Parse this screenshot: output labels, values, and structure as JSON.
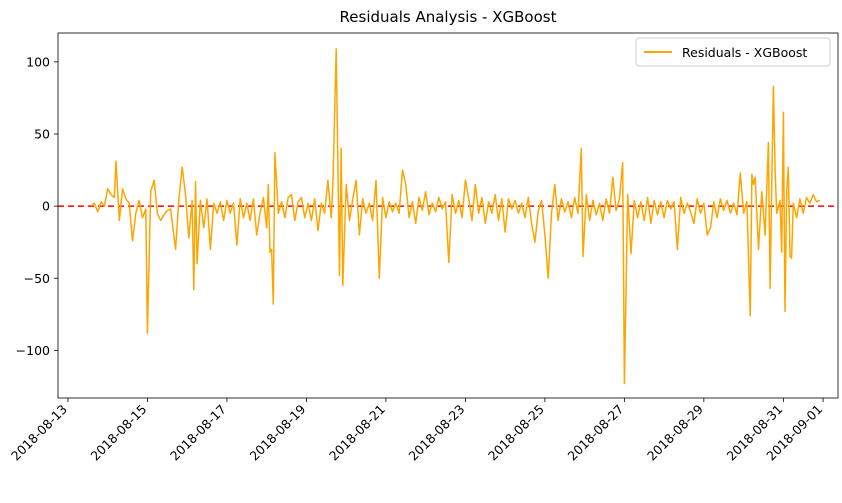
{
  "chart_data": {
    "type": "line",
    "title": "Residuals Analysis - XGBoost",
    "xlabel": "",
    "ylabel": "",
    "x_ticks": [
      "2018-08-13",
      "2018-08-15",
      "2018-08-17",
      "2018-08-19",
      "2018-08-21",
      "2018-08-23",
      "2018-08-25",
      "2018-08-27",
      "2018-08-29",
      "2018-08-31",
      "2018-09-01"
    ],
    "y_ticks": [
      100,
      50,
      0,
      -50,
      -100
    ],
    "y_tick_labels": [
      "100",
      "50",
      "0",
      "−50",
      "−100"
    ],
    "xlim": [
      "2018-08-12T18:00",
      "2018-09-01T09:00"
    ],
    "ylim": [
      -133,
      120
    ],
    "legend_position": "top-right",
    "reference_line": {
      "y": 0,
      "color": "#ff0000",
      "style": "dashed"
    },
    "series": [
      {
        "name": "Residuals - XGBoost",
        "color": "#ffa500",
        "points": [
          [
            "2018-08-13T14:00",
            0
          ],
          [
            "2018-08-13T16:00",
            2
          ],
          [
            "2018-08-13T18:00",
            -4
          ],
          [
            "2018-08-13T20:00",
            3
          ],
          [
            "2018-08-13T22:00",
            0
          ],
          [
            "2018-08-14T00:00",
            12
          ],
          [
            "2018-08-14T02:00",
            8
          ],
          [
            "2018-08-14T04:00",
            6
          ],
          [
            "2018-08-14T05:00",
            31
          ],
          [
            "2018-08-14T07:00",
            -10
          ],
          [
            "2018-08-14T09:00",
            12
          ],
          [
            "2018-08-14T11:00",
            5
          ],
          [
            "2018-08-14T13:00",
            2
          ],
          [
            "2018-08-14T15:00",
            -24
          ],
          [
            "2018-08-14T17:00",
            -5
          ],
          [
            "2018-08-14T19:00",
            4
          ],
          [
            "2018-08-14T21:00",
            -8
          ],
          [
            "2018-08-14T23:00",
            -2
          ],
          [
            "2018-08-15T00:00",
            -88
          ],
          [
            "2018-08-15T02:00",
            10
          ],
          [
            "2018-08-15T04:00",
            18
          ],
          [
            "2018-08-15T06:00",
            -5
          ],
          [
            "2018-08-15T08:00",
            -10
          ],
          [
            "2018-08-15T10:00",
            -6
          ],
          [
            "2018-08-15T12:00",
            -3
          ],
          [
            "2018-08-15T14:00",
            -2
          ],
          [
            "2018-08-15T17:00",
            -30
          ],
          [
            "2018-08-15T19:00",
            5
          ],
          [
            "2018-08-15T21:00",
            27
          ],
          [
            "2018-08-15T23:00",
            8
          ],
          [
            "2018-08-16T01:00",
            -22
          ],
          [
            "2018-08-16T03:00",
            4
          ],
          [
            "2018-08-16T04:00",
            -58
          ],
          [
            "2018-08-16T05:00",
            17
          ],
          [
            "2018-08-16T06:00",
            -40
          ],
          [
            "2018-08-16T08:00",
            4
          ],
          [
            "2018-08-16T10:00",
            -15
          ],
          [
            "2018-08-16T12:00",
            5
          ],
          [
            "2018-08-16T14:00",
            -30
          ],
          [
            "2018-08-16T16:00",
            2
          ],
          [
            "2018-08-16T18:00",
            -5
          ],
          [
            "2018-08-16T20:00",
            3
          ],
          [
            "2018-08-16T22:00",
            -10
          ],
          [
            "2018-08-17T00:00",
            4
          ],
          [
            "2018-08-17T02:00",
            -5
          ],
          [
            "2018-08-17T04:00",
            2
          ],
          [
            "2018-08-17T06:00",
            -27
          ],
          [
            "2018-08-17T08:00",
            5
          ],
          [
            "2018-08-17T10:00",
            -8
          ],
          [
            "2018-08-17T12:00",
            2
          ],
          [
            "2018-08-17T14:00",
            -10
          ],
          [
            "2018-08-17T16:00",
            5
          ],
          [
            "2018-08-17T18:00",
            -20
          ],
          [
            "2018-08-17T20:00",
            -5
          ],
          [
            "2018-08-17T22:00",
            6
          ],
          [
            "2018-08-18T00:00",
            -15
          ],
          [
            "2018-08-18T01:00",
            15
          ],
          [
            "2018-08-18T02:00",
            -32
          ],
          [
            "2018-08-18T03:00",
            -30
          ],
          [
            "2018-08-18T04:00",
            -68
          ],
          [
            "2018-08-18T05:00",
            37
          ],
          [
            "2018-08-18T07:00",
            -5
          ],
          [
            "2018-08-18T09:00",
            3
          ],
          [
            "2018-08-18T11:00",
            -8
          ],
          [
            "2018-08-18T13:00",
            6
          ],
          [
            "2018-08-18T15:00",
            8
          ],
          [
            "2018-08-18T17:00",
            -10
          ],
          [
            "2018-08-18T19:00",
            3
          ],
          [
            "2018-08-18T21:00",
            6
          ],
          [
            "2018-08-18T23:00",
            -8
          ],
          [
            "2018-08-19T01:00",
            2
          ],
          [
            "2018-08-19T03:00",
            -10
          ],
          [
            "2018-08-19T05:00",
            5
          ],
          [
            "2018-08-19T07:00",
            -17
          ],
          [
            "2018-08-19T09:00",
            2
          ],
          [
            "2018-08-19T11:00",
            -5
          ],
          [
            "2018-08-19T13:00",
            18
          ],
          [
            "2018-08-19T15:00",
            -8
          ],
          [
            "2018-08-19T16:00",
            15
          ],
          [
            "2018-08-19T18:00",
            109
          ],
          [
            "2018-08-19T20:00",
            -48
          ],
          [
            "2018-08-19T21:00",
            40
          ],
          [
            "2018-08-19T22:00",
            -55
          ],
          [
            "2018-08-20T00:00",
            15
          ],
          [
            "2018-08-20T02:00",
            -10
          ],
          [
            "2018-08-20T04:00",
            5
          ],
          [
            "2018-08-20T06:00",
            18
          ],
          [
            "2018-08-20T08:00",
            -20
          ],
          [
            "2018-08-20T10:00",
            5
          ],
          [
            "2018-08-20T12:00",
            -5
          ],
          [
            "2018-08-20T14:00",
            2
          ],
          [
            "2018-08-20T16:00",
            -10
          ],
          [
            "2018-08-20T18:00",
            18
          ],
          [
            "2018-08-20T20:00",
            -50
          ],
          [
            "2018-08-20T22:00",
            6
          ],
          [
            "2018-08-21T00:00",
            -8
          ],
          [
            "2018-08-21T02:00",
            3
          ],
          [
            "2018-08-21T04:00",
            -4
          ],
          [
            "2018-08-21T06:00",
            2
          ],
          [
            "2018-08-21T08:00",
            -5
          ],
          [
            "2018-08-21T10:00",
            25
          ],
          [
            "2018-08-21T12:00",
            15
          ],
          [
            "2018-08-21T14:00",
            -8
          ],
          [
            "2018-08-21T16:00",
            3
          ],
          [
            "2018-08-21T18:00",
            -12
          ],
          [
            "2018-08-21T20:00",
            6
          ],
          [
            "2018-08-21T22:00",
            -3
          ],
          [
            "2018-08-22T00:00",
            10
          ],
          [
            "2018-08-22T02:00",
            -6
          ],
          [
            "2018-08-22T04:00",
            2
          ],
          [
            "2018-08-22T06:00",
            -4
          ],
          [
            "2018-08-22T08:00",
            6
          ],
          [
            "2018-08-22T10:00",
            -2
          ],
          [
            "2018-08-22T12:00",
            3
          ],
          [
            "2018-08-22T14:00",
            -39
          ],
          [
            "2018-08-22T16:00",
            8
          ],
          [
            "2018-08-22T18:00",
            -5
          ],
          [
            "2018-08-22T20:00",
            4
          ],
          [
            "2018-08-22T22:00",
            -8
          ],
          [
            "2018-08-23T00:00",
            18
          ],
          [
            "2018-08-23T02:00",
            5
          ],
          [
            "2018-08-23T04:00",
            -10
          ],
          [
            "2018-08-23T06:00",
            15
          ],
          [
            "2018-08-23T08:00",
            -5
          ],
          [
            "2018-08-23T10:00",
            6
          ],
          [
            "2018-08-23T12:00",
            -12
          ],
          [
            "2018-08-23T14:00",
            3
          ],
          [
            "2018-08-23T16:00",
            -5
          ],
          [
            "2018-08-23T18:00",
            8
          ],
          [
            "2018-08-23T20:00",
            -10
          ],
          [
            "2018-08-23T22:00",
            5
          ],
          [
            "2018-08-24T00:00",
            -18
          ],
          [
            "2018-08-24T02:00",
            5
          ],
          [
            "2018-08-24T04:00",
            -2
          ],
          [
            "2018-08-24T06:00",
            4
          ],
          [
            "2018-08-24T08:00",
            -5
          ],
          [
            "2018-08-24T10:00",
            2
          ],
          [
            "2018-08-24T12:00",
            -8
          ],
          [
            "2018-08-24T14:00",
            6
          ],
          [
            "2018-08-24T16:00",
            -12
          ],
          [
            "2018-08-24T18:00",
            -25
          ],
          [
            "2018-08-24T20:00",
            -3
          ],
          [
            "2018-08-24T22:00",
            4
          ],
          [
            "2018-08-25T00:00",
            -20
          ],
          [
            "2018-08-25T02:00",
            -50
          ],
          [
            "2018-08-25T04:00",
            -5
          ],
          [
            "2018-08-25T06:00",
            15
          ],
          [
            "2018-08-25T08:00",
            -10
          ],
          [
            "2018-08-25T10:00",
            5
          ],
          [
            "2018-08-25T12:00",
            -4
          ],
          [
            "2018-08-25T14:00",
            3
          ],
          [
            "2018-08-25T16:00",
            -8
          ],
          [
            "2018-08-25T18:00",
            6
          ],
          [
            "2018-08-25T20:00",
            -5
          ],
          [
            "2018-08-25T22:00",
            40
          ],
          [
            "2018-08-25T23:00",
            -35
          ],
          [
            "2018-08-26T01:00",
            8
          ],
          [
            "2018-08-26T03:00",
            -10
          ],
          [
            "2018-08-26T05:00",
            4
          ],
          [
            "2018-08-26T07:00",
            -6
          ],
          [
            "2018-08-26T09:00",
            2
          ],
          [
            "2018-08-26T11:00",
            -10
          ],
          [
            "2018-08-26T13:00",
            5
          ],
          [
            "2018-08-26T15:00",
            -5
          ],
          [
            "2018-08-26T17:00",
            20
          ],
          [
            "2018-08-26T19:00",
            -3
          ],
          [
            "2018-08-26T21:00",
            5
          ],
          [
            "2018-08-26T23:00",
            30
          ],
          [
            "2018-08-27T00:00",
            -123
          ],
          [
            "2018-08-27T02:00",
            8
          ],
          [
            "2018-08-27T04:00",
            -33
          ],
          [
            "2018-08-27T06:00",
            4
          ],
          [
            "2018-08-27T08:00",
            -8
          ],
          [
            "2018-08-27T10:00",
            3
          ],
          [
            "2018-08-27T12:00",
            -10
          ],
          [
            "2018-08-27T14:00",
            6
          ],
          [
            "2018-08-27T16:00",
            -12
          ],
          [
            "2018-08-27T18:00",
            4
          ],
          [
            "2018-08-27T20:00",
            -6
          ],
          [
            "2018-08-27T22:00",
            3
          ],
          [
            "2018-08-28T00:00",
            -8
          ],
          [
            "2018-08-28T02:00",
            4
          ],
          [
            "2018-08-28T04:00",
            -2
          ],
          [
            "2018-08-28T06:00",
            3
          ],
          [
            "2018-08-28T08:00",
            -30
          ],
          [
            "2018-08-28T10:00",
            6
          ],
          [
            "2018-08-28T12:00",
            -5
          ],
          [
            "2018-08-28T14:00",
            2
          ],
          [
            "2018-08-28T16:00",
            -4
          ],
          [
            "2018-08-28T18:00",
            -12
          ],
          [
            "2018-08-28T20:00",
            5
          ],
          [
            "2018-08-28T22:00",
            -5
          ],
          [
            "2018-08-29T00:00",
            2
          ],
          [
            "2018-08-29T02:00",
            -20
          ],
          [
            "2018-08-29T04:00",
            -15
          ],
          [
            "2018-08-29T06:00",
            3
          ],
          [
            "2018-08-29T08:00",
            -8
          ],
          [
            "2018-08-29T10:00",
            5
          ],
          [
            "2018-08-29T12:00",
            -3
          ],
          [
            "2018-08-29T14:00",
            4
          ],
          [
            "2018-08-29T16:00",
            -5
          ],
          [
            "2018-08-29T18:00",
            2
          ],
          [
            "2018-08-29T20:00",
            -6
          ],
          [
            "2018-08-29T22:00",
            23
          ],
          [
            "2018-08-30T00:00",
            -5
          ],
          [
            "2018-08-30T02:00",
            3
          ],
          [
            "2018-08-30T04:00",
            -76
          ],
          [
            "2018-08-30T05:00",
            22
          ],
          [
            "2018-08-30T06:00",
            15
          ],
          [
            "2018-08-30T07:00",
            20
          ],
          [
            "2018-08-30T09:00",
            -30
          ],
          [
            "2018-08-30T11:00",
            10
          ],
          [
            "2018-08-30T13:00",
            -20
          ],
          [
            "2018-08-30T15:00",
            44
          ],
          [
            "2018-08-30T16:00",
            -57
          ],
          [
            "2018-08-30T18:00",
            83
          ],
          [
            "2018-08-30T19:00",
            25
          ],
          [
            "2018-08-30T20:00",
            -5
          ],
          [
            "2018-08-30T22:00",
            4
          ],
          [
            "2018-08-30T23:00",
            -32
          ],
          [
            "2018-08-31T00:00",
            65
          ],
          [
            "2018-08-31T01:00",
            -73
          ],
          [
            "2018-08-31T02:00",
            10
          ],
          [
            "2018-08-31T03:00",
            27
          ],
          [
            "2018-08-31T04:00",
            -35
          ],
          [
            "2018-08-31T05:00",
            -36
          ],
          [
            "2018-08-31T06:00",
            2
          ],
          [
            "2018-08-31T08:00",
            -8
          ],
          [
            "2018-08-31T10:00",
            5
          ],
          [
            "2018-08-31T12:00",
            -5
          ],
          [
            "2018-08-31T14:00",
            6
          ],
          [
            "2018-08-31T16:00",
            2
          ],
          [
            "2018-08-31T18:00",
            8
          ],
          [
            "2018-08-31T20:00",
            3
          ],
          [
            "2018-08-31T22:00",
            4
          ]
        ]
      }
    ]
  }
}
